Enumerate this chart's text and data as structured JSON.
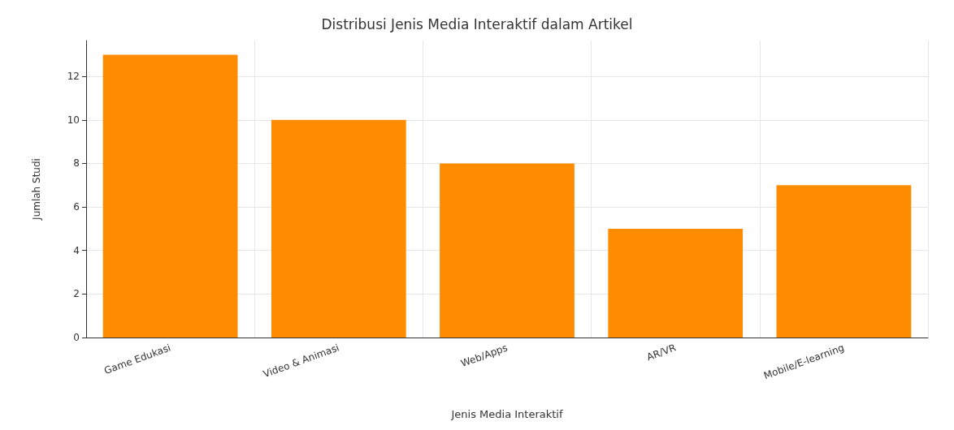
{
  "chart_data": {
    "type": "bar",
    "title": "Distribusi Jenis Media Interaktif dalam Artikel",
    "xlabel": "Jenis Media Interaktif",
    "ylabel": "Jumlah Studi",
    "categories": [
      "Game Edukasi",
      "Video & Animasi",
      "Web/Apps",
      "AR/VR",
      "Mobile/E-learning"
    ],
    "values": [
      13,
      10,
      8,
      5,
      7
    ],
    "color": "#ff8c00",
    "ylim": [
      0,
      13.65
    ],
    "yticks": [
      0,
      2,
      4,
      6,
      8,
      10,
      12
    ],
    "grid": true
  }
}
